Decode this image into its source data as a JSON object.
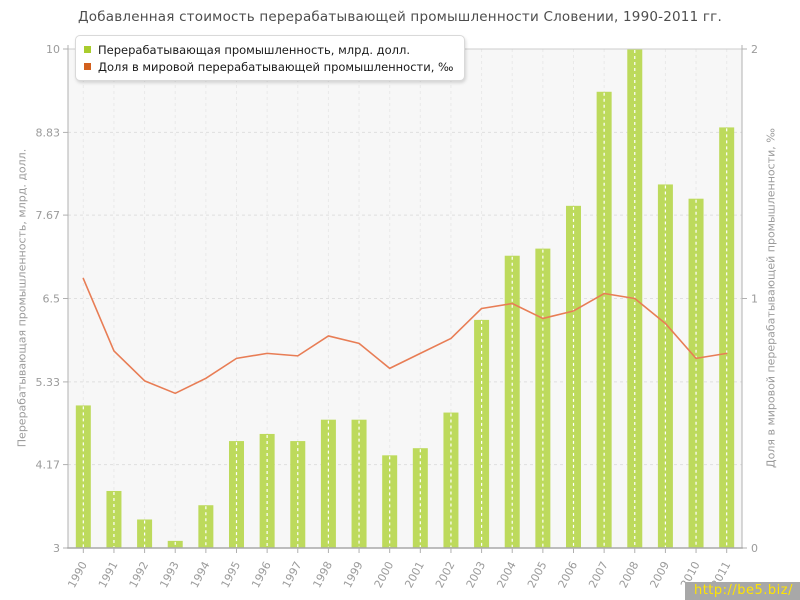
{
  "title": "Добавленная стоимость перерабатывающей промышленности Словении, 1990-2011 гг.",
  "legend": [
    {
      "label": "Перерабатывающая промышленность, млрд. долл.",
      "color": "#a9cc2e"
    },
    {
      "label": "Доля в мировой перерабатывающей промышленности, ‰",
      "color": "#d2601e"
    }
  ],
  "watermark": "http://be5.biz/",
  "chart_data": {
    "type": "bar+line",
    "title": "Добавленная стоимость перерабатывающей промышленности Словении, 1990-2011 гг.",
    "categories": [
      "1990",
      "1991",
      "1992",
      "1993",
      "1994",
      "1995",
      "1996",
      "1997",
      "1998",
      "1999",
      "2000",
      "2001",
      "2002",
      "2003",
      "2004",
      "2005",
      "2006",
      "2007",
      "2008",
      "2009",
      "2010",
      "2011"
    ],
    "series": [
      {
        "name": "Перерабатывающая промышленность, млрд. долл.",
        "type": "bar",
        "axis": "left",
        "color": "#bdda5c",
        "values": [
          5.0,
          3.8,
          3.4,
          3.1,
          3.6,
          4.5,
          4.6,
          4.5,
          4.8,
          4.8,
          4.3,
          4.4,
          4.9,
          6.2,
          7.1,
          7.2,
          7.8,
          9.4,
          10.0,
          8.1,
          7.9,
          8.9
        ]
      },
      {
        "name": "Доля в мировой перерабатывающей промышленности, ‰",
        "type": "line",
        "axis": "right",
        "color": "#e87d55",
        "values": [
          1.08,
          0.79,
          0.67,
          0.62,
          0.68,
          0.76,
          0.78,
          0.77,
          0.85,
          0.82,
          0.72,
          0.78,
          0.84,
          0.96,
          0.98,
          0.92,
          0.95,
          1.02,
          1.0,
          0.9,
          0.76,
          0.78
        ]
      }
    ],
    "left_axis": {
      "label": "Перерабатывающая промышленность, млрд. долл.",
      "min": 3,
      "max": 10,
      "ticks": [
        {
          "label": "3",
          "value": 3
        },
        {
          "label": "4.17",
          "value": 4.17
        },
        {
          "label": "5.33",
          "value": 5.33
        },
        {
          "label": "6.5",
          "value": 6.5
        },
        {
          "label": "7.67",
          "value": 7.67
        },
        {
          "label": "8.83",
          "value": 8.83
        },
        {
          "label": "10",
          "value": 10
        }
      ]
    },
    "right_axis": {
      "label": "Доля в мировой перерабатывающей промышленности, ‰",
      "min": 0,
      "max": 2,
      "ticks": [
        {
          "label": "0",
          "value": 0
        },
        {
          "label": "1",
          "value": 1
        },
        {
          "label": "2",
          "value": 2
        }
      ]
    },
    "grid": true,
    "legend_position": "top-left"
  }
}
